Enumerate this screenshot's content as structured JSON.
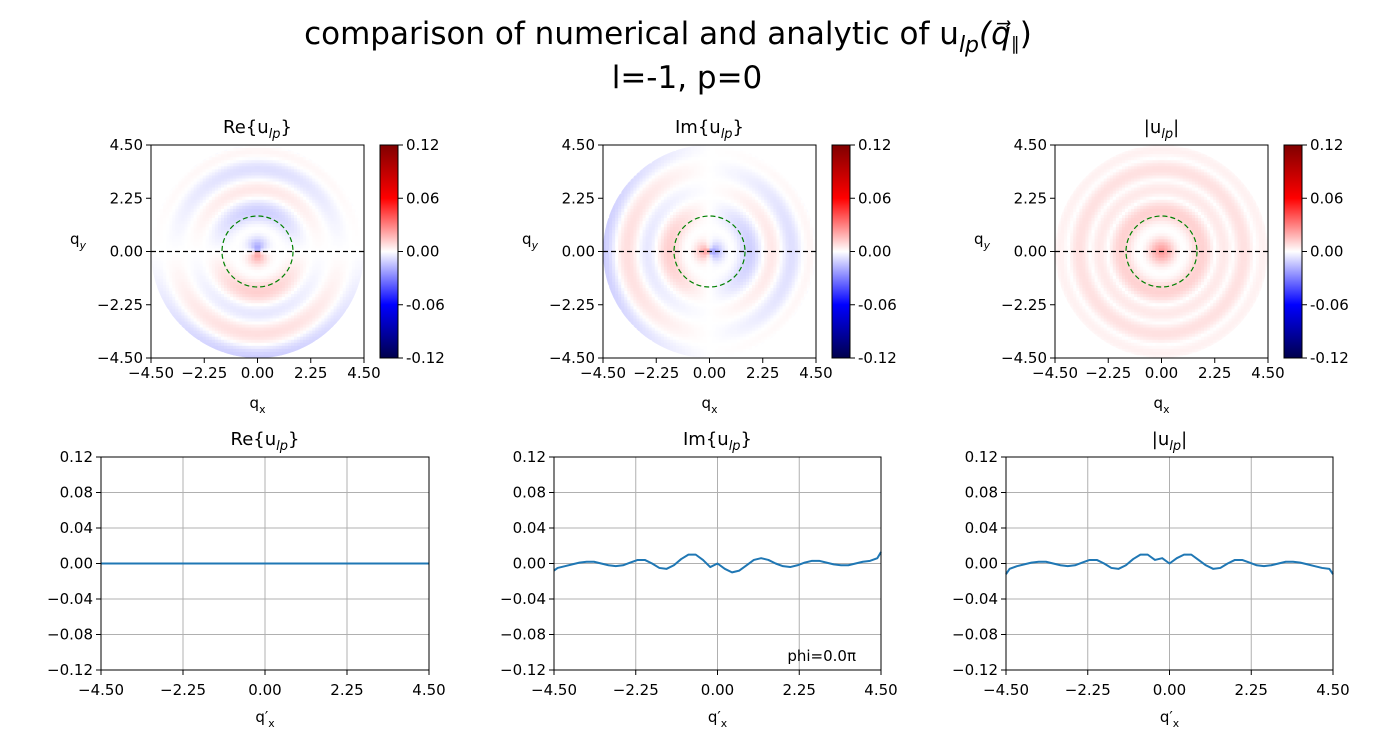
{
  "figure": {
    "title_line1": "comparison of numerical and analytic of u",
    "title_sub": "lp",
    "title_vec": "(q⃗",
    "title_vec_sub": "∥",
    "title_close": ")",
    "title_line2": "l=-1, p=0"
  },
  "colors": {
    "line": "#1f77b4",
    "grid": "#b0b0b0",
    "dashed_axis": "#000000",
    "dashed_circle": "#008000"
  },
  "chart_data": [
    {
      "type": "heatmap",
      "title": "Re{u",
      "title_sub": "lp",
      "title_close": "}",
      "xlabel": "q",
      "xlabel_sub": "x",
      "ylabel": "q",
      "ylabel_sub": "y",
      "xlim": [
        -4.5,
        4.5
      ],
      "ylim": [
        -4.5,
        4.5
      ],
      "xticks": [
        "−4.50",
        "−2.25",
        "0.00",
        "2.25",
        "4.50"
      ],
      "yticks": [
        "−4.50",
        "−2.25",
        "0.00",
        "2.25",
        "4.50"
      ],
      "colormap": "seismic",
      "clim": [
        -0.12,
        0.12
      ],
      "colorbar_ticks": [
        "-0.12",
        "-0.06",
        "0.00",
        "0.06",
        "0.12"
      ],
      "domain_radius": 4.5,
      "circle_radius": 1.5,
      "horizontal_line_y": 0.0,
      "field": "re"
    },
    {
      "type": "heatmap",
      "title": "Im{u",
      "title_sub": "lp",
      "title_close": "}",
      "xlabel": "q",
      "xlabel_sub": "x",
      "ylabel": "q",
      "ylabel_sub": "y",
      "xlim": [
        -4.5,
        4.5
      ],
      "ylim": [
        -4.5,
        4.5
      ],
      "xticks": [
        "−4.50",
        "−2.25",
        "0.00",
        "2.25",
        "4.50"
      ],
      "yticks": [
        "−4.50",
        "−2.25",
        "0.00",
        "2.25",
        "4.50"
      ],
      "colormap": "seismic",
      "clim": [
        -0.12,
        0.12
      ],
      "colorbar_ticks": [
        "-0.12",
        "-0.06",
        "0.00",
        "0.06",
        "0.12"
      ],
      "domain_radius": 4.5,
      "circle_radius": 1.5,
      "horizontal_line_y": 0.0,
      "field": "im"
    },
    {
      "type": "heatmap",
      "title": "|u",
      "title_sub": "lp",
      "title_close": "|",
      "xlabel": "q",
      "xlabel_sub": "x",
      "ylabel": "q",
      "ylabel_sub": "y",
      "xlim": [
        -4.5,
        4.5
      ],
      "ylim": [
        -4.5,
        4.5
      ],
      "xticks": [
        "−4.50",
        "−2.25",
        "0.00",
        "2.25",
        "4.50"
      ],
      "yticks": [
        "−4.50",
        "−2.25",
        "0.00",
        "2.25",
        "4.50"
      ],
      "colormap": "seismic",
      "clim": [
        -0.12,
        0.12
      ],
      "colorbar_ticks": [
        "-0.12",
        "-0.06",
        "0.00",
        "0.06",
        "0.12"
      ],
      "domain_radius": 4.5,
      "circle_radius": 1.5,
      "horizontal_line_y": 0.0,
      "field": "abs"
    },
    {
      "type": "line",
      "title": "Re{u",
      "title_sub": "lp",
      "title_close": "}",
      "xlabel": "q′",
      "xlabel_sub": "x",
      "xlim": [
        -4.5,
        4.5
      ],
      "ylim": [
        -0.12,
        0.12
      ],
      "grid": true,
      "xticks": [
        "−4.50",
        "−2.25",
        "0.00",
        "2.25",
        "4.50"
      ],
      "xtick_values": [
        -4.5,
        -2.25,
        0,
        2.25,
        4.5
      ],
      "yticks": [
        "−0.12",
        "−0.08",
        "−0.04",
        "0.00",
        "0.04",
        "0.08",
        "0.12"
      ],
      "ytick_values": [
        -0.12,
        -0.08,
        -0.04,
        0,
        0.04,
        0.08,
        0.12
      ],
      "x": [
        -4.5,
        -3.0,
        -1.5,
        0.0,
        1.5,
        3.0,
        4.5
      ],
      "y": [
        0,
        0,
        0,
        0,
        0,
        0,
        0
      ]
    },
    {
      "type": "line",
      "title": "Im{u",
      "title_sub": "lp",
      "title_close": "}",
      "xlabel": "q′",
      "xlabel_sub": "x",
      "xlim": [
        -4.5,
        4.5
      ],
      "ylim": [
        -0.12,
        0.12
      ],
      "grid": true,
      "xticks": [
        "−4.50",
        "−2.25",
        "0.00",
        "2.25",
        "4.50"
      ],
      "xtick_values": [
        -4.5,
        -2.25,
        0,
        2.25,
        4.5
      ],
      "yticks": [
        "−0.12",
        "−0.08",
        "−0.04",
        "0.00",
        "0.04",
        "0.08",
        "0.12"
      ],
      "ytick_values": [
        -0.12,
        -0.08,
        -0.04,
        0,
        0.04,
        0.08,
        0.12
      ],
      "annotation": "phi=0.0π",
      "x": [
        -4.5,
        -4.4,
        -4.2,
        -4.0,
        -3.8,
        -3.6,
        -3.4,
        -3.2,
        -3.0,
        -2.8,
        -2.6,
        -2.4,
        -2.2,
        -2.0,
        -1.8,
        -1.6,
        -1.4,
        -1.2,
        -1.0,
        -0.8,
        -0.6,
        -0.4,
        -0.2,
        0.0,
        0.2,
        0.4,
        0.6,
        0.8,
        1.0,
        1.2,
        1.4,
        1.6,
        1.8,
        2.0,
        2.2,
        2.4,
        2.6,
        2.8,
        3.0,
        3.2,
        3.4,
        3.6,
        3.8,
        4.0,
        4.2,
        4.4,
        4.5
      ],
      "y": [
        -0.008,
        -0.005,
        -0.003,
        -0.001,
        0.001,
        0.002,
        0.002,
        0.0,
        -0.002,
        -0.003,
        -0.002,
        0.001,
        0.004,
        0.004,
        0.0,
        -0.005,
        -0.006,
        -0.002,
        0.005,
        0.01,
        0.01,
        0.004,
        -0.004,
        0.0,
        -0.006,
        -0.01,
        -0.008,
        -0.002,
        0.004,
        0.006,
        0.004,
        0.0,
        -0.003,
        -0.004,
        -0.002,
        0.001,
        0.003,
        0.003,
        0.001,
        -0.001,
        -0.002,
        -0.002,
        0.0,
        0.002,
        0.003,
        0.006,
        0.013
      ]
    },
    {
      "type": "line",
      "title": "|u",
      "title_sub": "lp",
      "title_close": "|",
      "xlabel": "q′",
      "xlabel_sub": "x",
      "xlim": [
        -4.5,
        4.5
      ],
      "ylim": [
        -0.12,
        0.12
      ],
      "grid": true,
      "xticks": [
        "−4.50",
        "−2.25",
        "0.00",
        "2.25",
        "4.50"
      ],
      "xtick_values": [
        -4.5,
        -2.25,
        0,
        2.25,
        4.5
      ],
      "yticks": [
        "−0.12",
        "−0.08",
        "−0.04",
        "0.00",
        "0.04",
        "0.08",
        "0.12"
      ],
      "ytick_values": [
        -0.12,
        -0.08,
        -0.04,
        0,
        0.04,
        0.08,
        0.12
      ],
      "x": [
        -4.5,
        -4.4,
        -4.2,
        -4.0,
        -3.8,
        -3.6,
        -3.4,
        -3.2,
        -3.0,
        -2.8,
        -2.6,
        -2.4,
        -2.2,
        -2.0,
        -1.8,
        -1.6,
        -1.4,
        -1.2,
        -1.0,
        -0.8,
        -0.6,
        -0.4,
        -0.2,
        0.0,
        0.2,
        0.4,
        0.6,
        0.8,
        1.0,
        1.2,
        1.4,
        1.6,
        1.8,
        2.0,
        2.2,
        2.4,
        2.6,
        2.8,
        3.0,
        3.2,
        3.4,
        3.6,
        3.8,
        4.0,
        4.2,
        4.4,
        4.5
      ],
      "y": [
        -0.012,
        -0.006,
        -0.003,
        -0.001,
        0.001,
        0.002,
        0.002,
        0.0,
        -0.002,
        -0.003,
        -0.002,
        0.001,
        0.004,
        0.004,
        0.0,
        -0.005,
        -0.006,
        -0.002,
        0.005,
        0.01,
        0.01,
        0.004,
        0.006,
        0.0,
        0.006,
        0.01,
        0.01,
        0.004,
        -0.002,
        -0.006,
        -0.005,
        0.0,
        0.004,
        0.004,
        0.001,
        -0.002,
        -0.003,
        -0.002,
        0.0,
        0.002,
        0.002,
        0.001,
        -0.001,
        -0.003,
        -0.005,
        -0.006,
        -0.012
      ]
    }
  ]
}
